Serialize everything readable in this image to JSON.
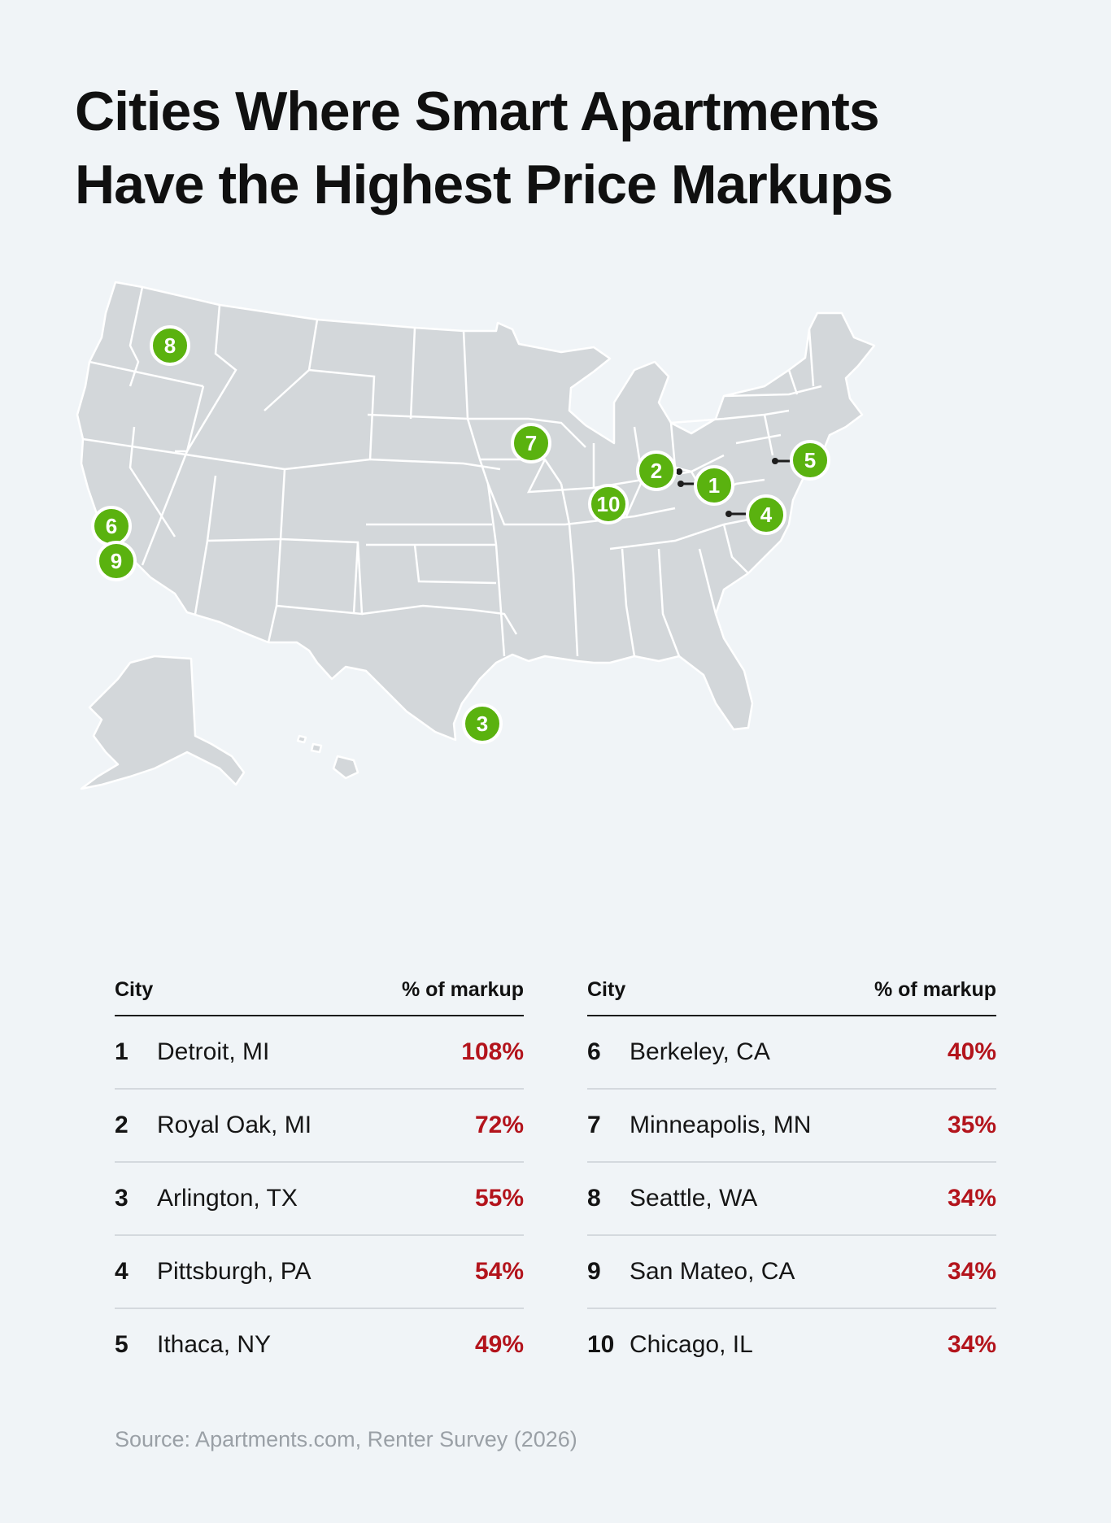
{
  "title": {
    "line1": "Cities Where Smart Apartments",
    "line2": "Have the Highest Price Markups"
  },
  "map": {
    "land_color": "#d3d7da",
    "border_color": "#ffffff",
    "pin_color": "#5ab20f",
    "pins": [
      {
        "label": "1",
        "city": "Detroit, MI"
      },
      {
        "label": "2",
        "city": "Royal Oak, MI"
      },
      {
        "label": "3",
        "city": "Arlington, TX"
      },
      {
        "label": "4",
        "city": "Pittsburgh, PA"
      },
      {
        "label": "5",
        "city": "Ithaca, NY"
      },
      {
        "label": "6",
        "city": "Berkeley, CA"
      },
      {
        "label": "7",
        "city": "Minneapolis, MN"
      },
      {
        "label": "8",
        "city": "Seattle, WA"
      },
      {
        "label": "9",
        "city": "San Mateo, CA"
      },
      {
        "label": "10",
        "city": "Chicago, IL"
      }
    ]
  },
  "table": {
    "col_city": "City",
    "col_markup": "% of markup",
    "accent_color": "#b3141c",
    "left": [
      {
        "rank": "1",
        "city": "Detroit, MI",
        "markup": "108%"
      },
      {
        "rank": "2",
        "city": "Royal Oak, MI",
        "markup": "72%"
      },
      {
        "rank": "3",
        "city": "Arlington, TX",
        "markup": "55%"
      },
      {
        "rank": "4",
        "city": "Pittsburgh, PA",
        "markup": "54%"
      },
      {
        "rank": "5",
        "city": "Ithaca, NY",
        "markup": "49%"
      }
    ],
    "right": [
      {
        "rank": "6",
        "city": "Berkeley, CA",
        "markup": "40%"
      },
      {
        "rank": "7",
        "city": "Minneapolis, MN",
        "markup": "35%"
      },
      {
        "rank": "8",
        "city": "Seattle, WA",
        "markup": "34%"
      },
      {
        "rank": "9",
        "city": "San Mateo, CA",
        "markup": "34%"
      },
      {
        "rank": "10",
        "city": "Chicago, IL",
        "markup": "34%"
      }
    ]
  },
  "source": "Source: Apartments.com, Renter Survey (2026)"
}
